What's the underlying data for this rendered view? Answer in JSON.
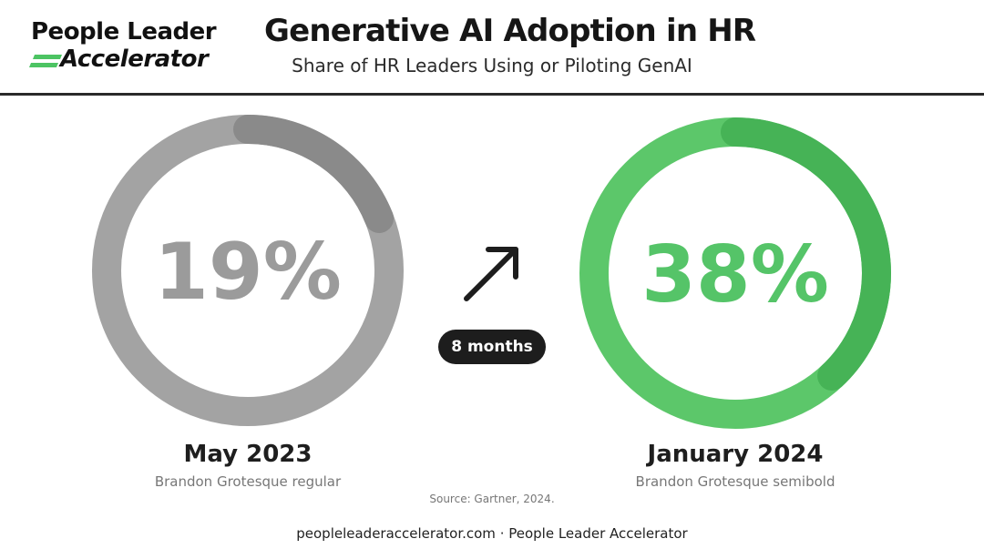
{
  "logo": {
    "line1": "People Leader",
    "line2": "Accelerator",
    "stripe_color": "#4CC463"
  },
  "header": {
    "title": "Generative AI Adoption in HR",
    "subtitle": "Share of HR Leaders Using or Piloting GenAI"
  },
  "chart_data": {
    "type": "donut",
    "title": "Generative AI Adoption in HR",
    "subtitle": "Share of HR Leaders Using or Piloting GenAI",
    "series": [
      {
        "period": "May 2023",
        "value": 19,
        "value_label": "19%",
        "font_note": "Brandon Grotesque regular",
        "ring_color": "#A3A3A3",
        "arc_color": "#8A8A8A",
        "text_color": "#9B9B9B"
      },
      {
        "period": "January 2024",
        "value": 38,
        "value_label": "38%",
        "font_note": "Brandon Grotesque semibold",
        "ring_color": "#5CC76A",
        "arc_color": "#46B356",
        "text_color": "#55C468"
      }
    ],
    "change": {
      "label": "8 months",
      "direction": "up"
    },
    "source": "Source: Gartner, 2024."
  },
  "footer": {
    "text": "peopleleaderaccelerator.com · People Leader Accelerator"
  }
}
